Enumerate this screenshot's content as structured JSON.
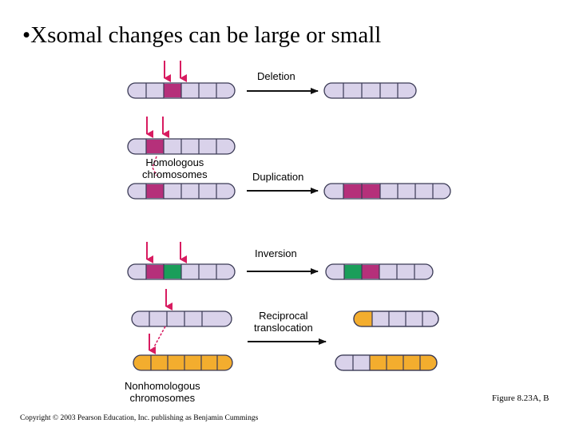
{
  "slide": {
    "title": "Xsomal changes can be large or small",
    "bullet": "•"
  },
  "labels": {
    "deletion": "Deletion",
    "duplication": "Duplication",
    "inversion": "Inversion",
    "reciprocal_line1": "Reciprocal",
    "reciprocal_line2": "translocation",
    "homologous_line1": "Homologous",
    "homologous_line2": "chromosomes",
    "nonhomologous_line1": "Nonhomologous",
    "nonhomologous_line2": "chromosomes"
  },
  "footer": {
    "copyright": "Copyright © 2003 Pearson Education, Inc. publishing as Benjamin Cummings",
    "figure": "Figure 8.23A, B"
  },
  "colors": {
    "lavender": "#d9d2ea",
    "magenta": "#b5307a",
    "green": "#1a9e5a",
    "orange": "#f3ad2e",
    "outline": "#3a3a55",
    "arrow": "#d81b60"
  }
}
